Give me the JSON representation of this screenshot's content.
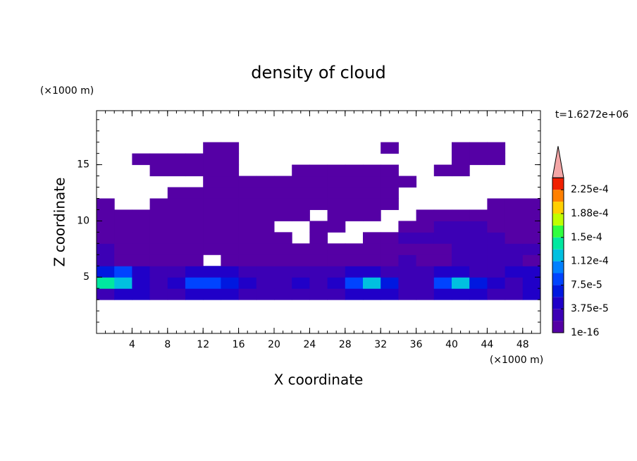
{
  "chart_data": {
    "type": "contour",
    "title": "density of cloud",
    "x_label": "X coordinate",
    "y_label": "Z coordinate",
    "x_unit": "(×1000 m)",
    "y_unit": "(×1000 m)",
    "annotation": "t=1.6272e+06",
    "xlim": [
      0,
      50
    ],
    "ylim": [
      0,
      19.8
    ],
    "xticks": [
      4,
      8,
      12,
      16,
      20,
      24,
      28,
      32,
      36,
      40,
      44,
      48
    ],
    "yticks": [
      5,
      10,
      15
    ],
    "x": [
      1,
      3,
      5,
      7,
      9,
      11,
      13,
      15,
      17,
      19,
      21,
      23,
      25,
      27,
      29,
      31,
      33,
      35,
      37,
      39,
      41,
      43,
      45,
      47,
      49
    ],
    "y": [
      3.5,
      4.5,
      5.5,
      6.5,
      7.5,
      8.5,
      9.5,
      10.5,
      11.5,
      12.5,
      13.5,
      14.5,
      15.5,
      16.5
    ],
    "values": [
      [
        3e-05,
        5e-05,
        5e-05,
        3e-05,
        3e-05,
        5e-05,
        5e-05,
        5e-05,
        3e-05,
        3e-05,
        3e-05,
        3e-05,
        3e-05,
        3e-05,
        5e-05,
        5e-05,
        5e-05,
        3e-05,
        3e-05,
        5e-05,
        5e-05,
        5e-05,
        3e-05,
        3e-05,
        5e-05
      ],
      [
        0.00014,
        0.00012,
        5e-05,
        3e-05,
        5e-05,
        9e-05,
        9e-05,
        7e-05,
        5e-05,
        3e-05,
        3e-05,
        5e-05,
        3e-05,
        5e-05,
        9e-05,
        0.00012,
        7e-05,
        3e-05,
        3e-05,
        9e-05,
        0.00012,
        7e-05,
        5e-05,
        3e-05,
        5e-05
      ],
      [
        7e-05,
        9e-05,
        5e-05,
        3e-05,
        3e-05,
        5e-05,
        5e-05,
        5e-05,
        3e-05,
        3e-05,
        3e-05,
        3e-05,
        3e-05,
        3e-05,
        5e-05,
        5e-05,
        3e-05,
        3e-05,
        3e-05,
        5e-05,
        5e-05,
        3e-05,
        3e-05,
        5e-05,
        5e-05
      ],
      [
        3e-05,
        1e-05,
        1e-05,
        1e-05,
        1e-05,
        1e-05,
        null,
        1e-05,
        1e-05,
        1e-05,
        1e-05,
        1e-05,
        1e-05,
        1e-05,
        1e-05,
        1e-05,
        1e-05,
        3e-05,
        1e-05,
        1e-05,
        3e-05,
        3e-05,
        3e-05,
        3e-05,
        1e-05
      ],
      [
        3e-05,
        1e-05,
        1e-05,
        1e-05,
        1e-05,
        1e-05,
        1e-05,
        1e-05,
        1e-05,
        1e-05,
        1e-05,
        1e-05,
        1e-05,
        1e-05,
        1e-05,
        1e-05,
        1e-05,
        1e-05,
        1e-05,
        1e-05,
        3e-05,
        3e-05,
        3e-05,
        3e-05,
        3e-05
      ],
      [
        1e-05,
        1e-05,
        1e-05,
        1e-05,
        1e-05,
        1e-05,
        1e-05,
        1e-05,
        1e-05,
        1e-05,
        1e-05,
        null,
        1e-05,
        null,
        null,
        1e-05,
        1e-05,
        3e-05,
        3e-05,
        3e-05,
        3e-05,
        3e-05,
        3e-05,
        1e-05,
        1e-05
      ],
      [
        1e-05,
        1e-05,
        1e-05,
        1e-05,
        1e-05,
        1e-05,
        1e-05,
        1e-05,
        1e-05,
        1e-05,
        null,
        null,
        1e-05,
        1e-05,
        null,
        null,
        null,
        1e-05,
        1e-05,
        3e-05,
        3e-05,
        3e-05,
        1e-05,
        1e-05,
        1e-05
      ],
      [
        1e-05,
        1e-05,
        1e-05,
        1e-05,
        1e-05,
        1e-05,
        1e-05,
        1e-05,
        1e-05,
        1e-05,
        1e-05,
        1e-05,
        null,
        1e-05,
        1e-05,
        1e-05,
        null,
        null,
        1e-05,
        1e-05,
        1e-05,
        1e-05,
        1e-05,
        1e-05,
        1e-05
      ],
      [
        1e-05,
        null,
        null,
        1e-05,
        1e-05,
        1e-05,
        1e-05,
        1e-05,
        1e-05,
        1e-05,
        1e-05,
        1e-05,
        1e-05,
        1e-05,
        1e-05,
        1e-05,
        1e-05,
        null,
        null,
        null,
        null,
        null,
        1e-05,
        1e-05,
        1e-05
      ],
      [
        null,
        null,
        null,
        null,
        1e-05,
        1e-05,
        1e-05,
        1e-05,
        1e-05,
        1e-05,
        1e-05,
        1e-05,
        1e-05,
        1e-05,
        1e-05,
        1e-05,
        1e-05,
        null,
        null,
        null,
        null,
        null,
        null,
        null,
        null
      ],
      [
        null,
        null,
        null,
        null,
        null,
        null,
        1e-05,
        1e-05,
        1e-05,
        1e-05,
        1e-05,
        1e-05,
        1e-05,
        1e-05,
        1e-05,
        1e-05,
        1e-05,
        1e-05,
        null,
        null,
        null,
        null,
        null,
        null,
        null
      ],
      [
        null,
        null,
        null,
        1e-05,
        1e-05,
        1e-05,
        1e-05,
        1e-05,
        null,
        null,
        null,
        1e-05,
        1e-05,
        1e-05,
        1e-05,
        1e-05,
        1e-05,
        null,
        null,
        1e-05,
        1e-05,
        null,
        null,
        null,
        null
      ],
      [
        null,
        null,
        1e-05,
        1e-05,
        1e-05,
        1e-05,
        1e-05,
        1e-05,
        null,
        null,
        null,
        null,
        null,
        null,
        null,
        null,
        null,
        null,
        null,
        null,
        1e-05,
        1e-05,
        1e-05,
        null,
        null
      ],
      [
        null,
        null,
        null,
        null,
        null,
        null,
        1e-05,
        1e-05,
        null,
        null,
        null,
        null,
        null,
        null,
        null,
        null,
        1e-05,
        null,
        null,
        null,
        1e-05,
        1e-05,
        1e-05,
        null,
        null
      ]
    ],
    "colorbar": {
      "levels": [
        1e-16,
        1.875e-05,
        3.75e-05,
        5.625e-05,
        7.5e-05,
        9.375e-05,
        0.0001125,
        0.00013125,
        0.00015,
        0.00016875,
        0.0001875,
        0.00020625,
        0.000225,
        0.00024375
      ],
      "colors": [
        "#5500a5",
        "#3c00b5",
        "#2000c8",
        "#0018e0",
        "#0044ff",
        "#0080ff",
        "#00c0e0",
        "#00e8a0",
        "#30ff40",
        "#c0ff00",
        "#ffd000",
        "#ff8000",
        "#f02000"
      ],
      "extend_color": "#f4a6a6",
      "ticks": [
        {
          "value": 1e-16,
          "label": "1e-16"
        },
        {
          "value": 3.75e-05,
          "label": "3.75e-5"
        },
        {
          "value": 7.5e-05,
          "label": "7.5e-5"
        },
        {
          "value": 0.0001125,
          "label": "1.12e-4"
        },
        {
          "value": 0.00015,
          "label": "1.5e-4"
        },
        {
          "value": 0.0001875,
          "label": "1.88e-4"
        },
        {
          "value": 0.000225,
          "label": "2.25e-4"
        }
      ]
    }
  }
}
